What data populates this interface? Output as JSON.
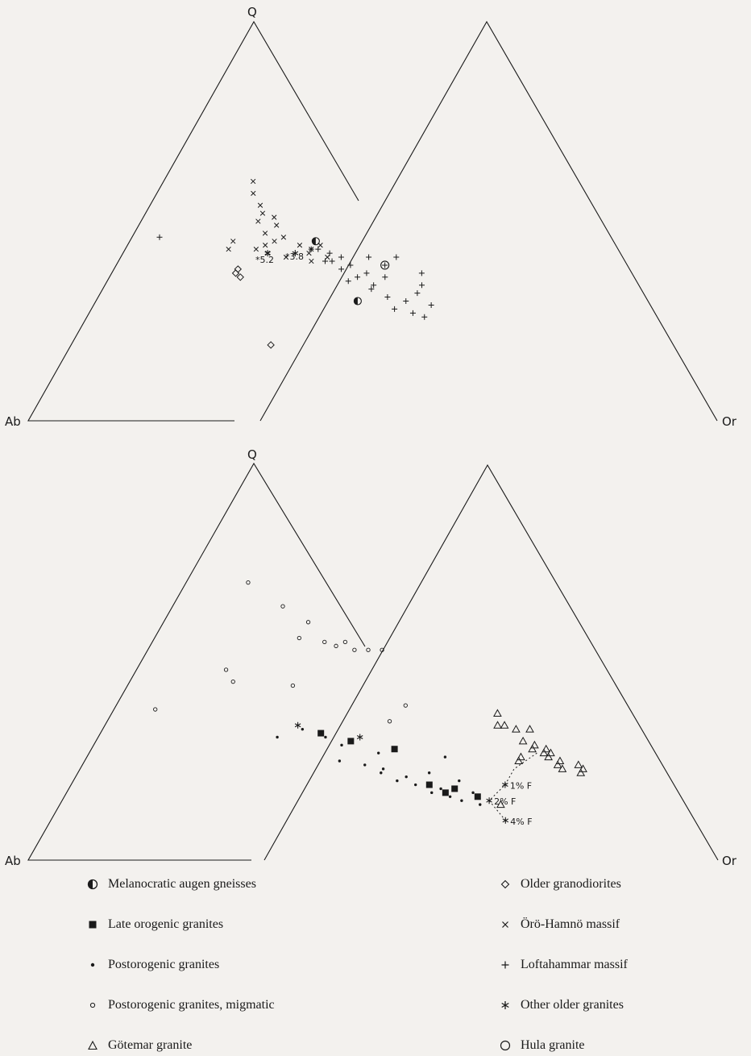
{
  "vertices": {
    "top": "Q",
    "left": "Ab",
    "right": "Or"
  },
  "annotations": {
    "val_5_2": "*5.2",
    "val_3_8": "*3.8",
    "f1": "1% F",
    "f2": "2% F",
    "f4": "4% F"
  },
  "legend": {
    "left": [
      {
        "symbol": "half-filled-circle",
        "label": "Melanocratic augen gneisses"
      },
      {
        "symbol": "filled-square",
        "label": "Late orogenic granites"
      },
      {
        "symbol": "small-dot",
        "label": "Postorogenic granites"
      },
      {
        "symbol": "small-open-circle",
        "label": "Postorogenic granites, migmatic"
      },
      {
        "symbol": "open-triangle",
        "label": "Götemar granite"
      }
    ],
    "right": [
      {
        "symbol": "open-diamond",
        "label": "Older granodiorites"
      },
      {
        "symbol": "x-mark",
        "label": "Örö-Hamnö massif"
      },
      {
        "symbol": "plus",
        "label": "Loftahammar massif"
      },
      {
        "symbol": "asterisk",
        "label": "Other older granites"
      },
      {
        "symbol": "large-open-circle",
        "label": "Hula granite"
      }
    ]
  },
  "chart_data": {
    "type": "ternary-scatter",
    "components": [
      "Q",
      "Ab",
      "Or"
    ],
    "panels": [
      {
        "position": "top",
        "series": [
          {
            "symbol": "open-diamond",
            "points": [
              [
                0.38,
                0.44,
                0.18
              ],
              [
                0.37,
                0.45,
                0.18
              ],
              [
                0.36,
                0.45,
                0.19
              ],
              [
                0.19,
                0.52,
                0.29
              ]
            ]
          },
          {
            "symbol": "asterisk",
            "points": [
              [
                0.42,
                0.37,
                0.21
              ],
              [
                0.42,
                0.33,
                0.25
              ]
            ]
          },
          {
            "symbol": "x-mark",
            "points": [
              [
                0.6,
                0.27,
                0.13
              ],
              [
                0.57,
                0.29,
                0.14
              ],
              [
                0.54,
                0.3,
                0.16
              ],
              [
                0.52,
                0.31,
                0.17
              ],
              [
                0.5,
                0.33,
                0.17
              ],
              [
                0.51,
                0.3,
                0.19
              ],
              [
                0.49,
                0.31,
                0.2
              ],
              [
                0.47,
                0.34,
                0.19
              ],
              [
                0.46,
                0.32,
                0.22
              ],
              [
                0.45,
                0.34,
                0.21
              ],
              [
                0.44,
                0.31,
                0.25
              ],
              [
                0.43,
                0.3,
                0.27
              ],
              [
                0.42,
                0.31,
                0.27
              ],
              [
                0.44,
                0.36,
                0.2
              ],
              [
                0.43,
                0.38,
                0.19
              ],
              [
                0.42,
                0.37,
                0.21
              ],
              [
                0.41,
                0.35,
                0.24
              ],
              [
                0.45,
                0.4,
                0.15
              ],
              [
                0.43,
                0.42,
                0.15
              ],
              [
                0.44,
                0.28,
                0.28
              ],
              [
                0.4,
                0.32,
                0.28
              ],
              [
                0.41,
                0.29,
                0.3
              ]
            ]
          },
          {
            "symbol": "plus",
            "points": [
              [
                0.46,
                0.5,
                0.04
              ],
              [
                0.43,
                0.3,
                0.27
              ],
              [
                0.43,
                0.29,
                0.28
              ],
              [
                0.42,
                0.28,
                0.3
              ],
              [
                0.41,
                0.27,
                0.32
              ],
              [
                0.4,
                0.3,
                0.3
              ],
              [
                0.4,
                0.29,
                0.31
              ],
              [
                0.39,
                0.27,
                0.34
              ],
              [
                0.38,
                0.29,
                0.33
              ],
              [
                0.37,
                0.26,
                0.37
              ],
              [
                0.36,
                0.28,
                0.36
              ],
              [
                0.35,
                0.3,
                0.35
              ],
              [
                0.34,
                0.27,
                0.39
              ],
              [
                0.33,
                0.28,
                0.39
              ],
              [
                0.31,
                0.27,
                0.42
              ],
              [
                0.3,
                0.25,
                0.45
              ],
              [
                0.28,
                0.28,
                0.44
              ],
              [
                0.27,
                0.26,
                0.47
              ],
              [
                0.41,
                0.23,
                0.36
              ],
              [
                0.39,
                0.22,
                0.39
              ],
              [
                0.36,
                0.24,
                0.4
              ],
              [
                0.32,
                0.22,
                0.46
              ],
              [
                0.29,
                0.22,
                0.49
              ],
              [
                0.41,
                0.19,
                0.4
              ],
              [
                0.37,
                0.18,
                0.45
              ],
              [
                0.34,
                0.2,
                0.46
              ],
              [
                0.26,
                0.25,
                0.49
              ]
            ]
          },
          {
            "symbol": "half-filled-circle",
            "points": [
              [
                0.45,
                0.28,
                0.27
              ],
              [
                0.3,
                0.32,
                0.38
              ]
            ]
          },
          {
            "symbol": "large-open-circle",
            "points": [
              [
                0.39,
                0.22,
                0.39
              ]
            ]
          }
        ]
      },
      {
        "position": "bottom",
        "series": [
          {
            "symbol": "small-open-circle",
            "points": [
              [
                0.7,
                0.21,
                0.09
              ],
              [
                0.64,
                0.2,
                0.16
              ],
              [
                0.6,
                0.19,
                0.21
              ],
              [
                0.56,
                0.23,
                0.21
              ],
              [
                0.55,
                0.2,
                0.25
              ],
              [
                0.54,
                0.19,
                0.27
              ],
              [
                0.55,
                0.17,
                0.28
              ],
              [
                0.53,
                0.17,
                0.3
              ],
              [
                0.53,
                0.15,
                0.32
              ],
              [
                0.53,
                0.13,
                0.34
              ],
              [
                0.48,
                0.39,
                0.13
              ],
              [
                0.45,
                0.4,
                0.15
              ],
              [
                0.44,
                0.32,
                0.24
              ],
              [
                0.38,
                0.56,
                0.06
              ],
              [
                0.39,
                0.19,
                0.42
              ],
              [
                0.35,
                0.24,
                0.41
              ]
            ]
          },
          {
            "symbol": "small-dot",
            "points": [
              [
                0.33,
                0.38,
                0.29
              ],
              [
                0.31,
                0.43,
                0.26
              ],
              [
                0.31,
                0.36,
                0.33
              ],
              [
                0.29,
                0.35,
                0.36
              ],
              [
                0.27,
                0.31,
                0.42
              ],
              [
                0.25,
                0.38,
                0.37
              ],
              [
                0.24,
                0.35,
                0.41
              ],
              [
                0.23,
                0.33,
                0.44
              ],
              [
                0.22,
                0.34,
                0.44
              ],
              [
                0.21,
                0.31,
                0.48
              ],
              [
                0.2,
                0.33,
                0.47
              ],
              [
                0.19,
                0.31,
                0.5
              ],
              [
                0.18,
                0.28,
                0.54
              ],
              [
                0.17,
                0.3,
                0.53
              ],
              [
                0.16,
                0.28,
                0.56
              ],
              [
                0.15,
                0.27,
                0.58
              ],
              [
                0.22,
                0.27,
                0.51
              ],
              [
                0.26,
                0.22,
                0.52
              ],
              [
                0.2,
                0.24,
                0.56
              ],
              [
                0.17,
                0.24,
                0.59
              ],
              [
                0.14,
                0.25,
                0.61
              ]
            ]
          },
          {
            "symbol": "filled-square",
            "points": [
              [
                0.32,
                0.36,
                0.32
              ],
              [
                0.3,
                0.33,
                0.37
              ],
              [
                0.28,
                0.28,
                0.44
              ],
              [
                0.19,
                0.29,
                0.52
              ],
              [
                0.18,
                0.26,
                0.56
              ],
              [
                0.17,
                0.28,
                0.55
              ],
              [
                0.16,
                0.24,
                0.6
              ]
            ]
          },
          {
            "symbol": "asterisk",
            "points": [
              [
                0.34,
                0.38,
                0.28
              ],
              [
                0.31,
                0.31,
                0.38
              ]
            ]
          },
          {
            "symbol": "open-triangle",
            "points": [
              [
                0.37,
                0.07,
                0.56
              ],
              [
                0.34,
                0.09,
                0.57
              ],
              [
                0.34,
                0.08,
                0.58
              ],
              [
                0.33,
                0.07,
                0.6
              ],
              [
                0.33,
                0.05,
                0.62
              ],
              [
                0.3,
                0.08,
                0.62
              ],
              [
                0.29,
                0.07,
                0.64
              ],
              [
                0.28,
                0.08,
                0.64
              ],
              [
                0.28,
                0.06,
                0.66
              ],
              [
                0.27,
                0.07,
                0.66
              ],
              [
                0.27,
                0.06,
                0.67
              ],
              [
                0.26,
                0.07,
                0.67
              ],
              [
                0.25,
                0.06,
                0.69
              ],
              [
                0.24,
                0.07,
                0.69
              ],
              [
                0.23,
                0.07,
                0.7
              ],
              [
                0.22,
                0.05,
                0.73
              ],
              [
                0.26,
                0.11,
                0.63
              ],
              [
                0.25,
                0.12,
                0.63
              ],
              [
                0.24,
                0.04,
                0.72
              ],
              [
                0.23,
                0.04,
                0.73
              ],
              [
                0.14,
                0.22,
                0.64
              ]
            ]
          }
        ]
      }
    ],
    "fractionation_curve": {
      "panel": "bottom",
      "points": [
        [
          0.27,
          0.08,
          0.65
        ],
        [
          0.23,
          0.14,
          0.63
        ],
        [
          0.19,
          0.18,
          0.63
        ],
        [
          0.15,
          0.23,
          0.62
        ],
        [
          0.1,
          0.24,
          0.66
        ]
      ],
      "labels": [
        {
          "text": "1% F",
          "point": [
            0.19,
            0.18,
            0.63
          ]
        },
        {
          "text": "2% F",
          "point": [
            0.15,
            0.23,
            0.62
          ]
        },
        {
          "text": "4% F",
          "point": [
            0.1,
            0.24,
            0.66
          ]
        }
      ]
    }
  }
}
